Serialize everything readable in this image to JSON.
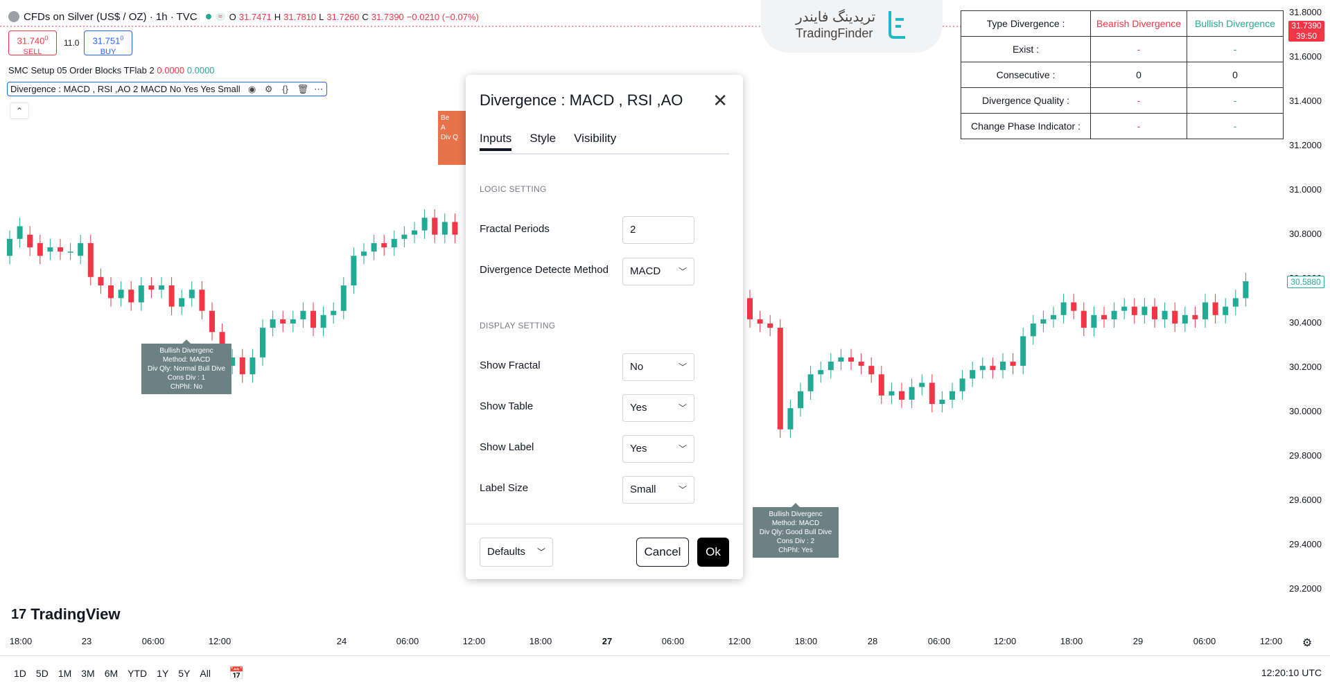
{
  "header": {
    "symbol": "CFDs on Silver (US$ / OZ) · 1h · TVC",
    "live_badge": "≈",
    "ohlc": {
      "o_label": "O",
      "o": "31.7471",
      "h_label": "H",
      "h": "31.7810",
      "l_label": "L",
      "l": "31.7260",
      "c_label": "C",
      "c": "31.7390",
      "change": "−0.0210 (−0.07%)"
    }
  },
  "trade": {
    "sell_price": "31.740",
    "sell_sup": "0",
    "sell_label": "SELL",
    "spread": "11.0",
    "buy_price": "31.751",
    "buy_sup": "0",
    "buy_label": "BUY"
  },
  "indicators": {
    "line1_name": "SMC Setup 05 Order Blocks TFlab 2",
    "line1_v1": "0.0000",
    "line1_v2": "0.0000",
    "line2_name": "Divergence : MACD , RSI ,AO 2 MACD No Yes Yes Small"
  },
  "watermark": {
    "fa": "تریدینگ فایندر",
    "en": "TradingFinder"
  },
  "div_table": {
    "headers": [
      "Type Divergence :",
      "Bearish Divergence",
      "Bullish Divergence"
    ],
    "rows": [
      {
        "label": "Exist :",
        "bear": "-",
        "bull": "-"
      },
      {
        "label": "Consecutive :",
        "bear": "0",
        "bull": "0"
      },
      {
        "label": "Divergence Quality :",
        "bear": "-",
        "bull": "-"
      },
      {
        "label": "Change Phase Indicator :",
        "bear": "-",
        "bull": "-"
      }
    ]
  },
  "price_scale": {
    "labels": [
      "31.8000",
      "31.6000",
      "31.4000",
      "31.2000",
      "31.0000",
      "30.8000",
      "30.6000",
      "30.4000",
      "30.2000",
      "30.0000",
      "29.8000",
      "29.6000",
      "29.4000",
      "29.2000"
    ],
    "current_price": "31.7390",
    "current_time": "39:50",
    "marker_price": "30.5880"
  },
  "time_axis": [
    "18:00",
    "23",
    "06:00",
    "12:00",
    "24",
    "06:00",
    "12:00",
    "18:00",
    "27",
    "06:00",
    "12:00",
    "18:00",
    "28",
    "06:00",
    "12:00",
    "18:00",
    "29",
    "06:00",
    "12:00"
  ],
  "periods": [
    "1D",
    "5D",
    "1M",
    "3M",
    "6M",
    "YTD",
    "1Y",
    "5Y",
    "All"
  ],
  "utc_time": "12:20:10 UTC",
  "brand": "TradingView",
  "labels": {
    "bull1": [
      "Bullish Divergenc",
      "Method: MACD",
      "Div Qly: Normal Bull Dive",
      "Cons Div : 1",
      "ChPhI: No"
    ],
    "bull2": [
      "Bullish Divergenc",
      "Method: MACD",
      "Div Qly: Good Bull Dive",
      "Cons Div : 2",
      "ChPhI: Yes"
    ],
    "orange": [
      "Be",
      "A",
      "Div Q"
    ]
  },
  "dialog": {
    "title": "Divergence : MACD , RSI ,AO",
    "tabs": [
      "Inputs",
      "Style",
      "Visibility"
    ],
    "logic_header": "LOGIC SETTING",
    "display_header": "DISPLAY SETTING",
    "fields": {
      "fractal_periods": {
        "label": "Fractal Periods",
        "value": "2"
      },
      "method": {
        "label": "Divergence Detecte Method",
        "value": "MACD"
      },
      "show_fractal": {
        "label": "Show Fractal",
        "value": "No"
      },
      "show_table": {
        "label": "Show Table",
        "value": "Yes"
      },
      "show_label": {
        "label": "Show Label",
        "value": "Yes"
      },
      "label_size": {
        "label": "Label Size",
        "value": "Small"
      }
    },
    "defaults_label": "Defaults",
    "cancel_label": "Cancel",
    "ok_label": "Ok"
  },
  "colors": {
    "bull": "#22ab94",
    "bear": "#f23645",
    "label_bg": "#6b8184"
  },
  "chart_data": {
    "type": "candlestick",
    "price_range": [
      29.1,
      31.85
    ],
    "candles_left": [
      [
        30.7,
        30.78
      ],
      [
        30.78,
        30.84
      ],
      [
        30.8,
        30.74
      ],
      [
        30.76,
        30.7
      ],
      [
        30.72,
        30.74
      ],
      [
        30.74,
        30.72
      ],
      [
        30.72,
        30.72
      ],
      [
        30.7,
        30.76
      ],
      [
        30.76,
        30.6
      ],
      [
        30.6,
        30.56
      ],
      [
        30.56,
        30.5
      ],
      [
        30.5,
        30.54
      ],
      [
        30.54,
        30.48
      ],
      [
        30.48,
        30.56
      ],
      [
        30.56,
        30.54
      ],
      [
        30.54,
        30.56
      ],
      [
        30.56,
        30.46
      ],
      [
        30.46,
        30.5
      ],
      [
        30.5,
        30.54
      ],
      [
        30.54,
        30.44
      ],
      [
        30.44,
        30.34
      ],
      [
        30.34,
        30.18
      ],
      [
        30.18,
        30.22
      ],
      [
        30.22,
        30.14
      ],
      [
        30.14,
        30.22
      ],
      [
        30.22,
        30.36
      ],
      [
        30.36,
        30.4
      ],
      [
        30.4,
        30.38
      ],
      [
        30.38,
        30.4
      ],
      [
        30.4,
        30.44
      ],
      [
        30.44,
        30.36
      ],
      [
        30.36,
        30.42
      ],
      [
        30.42,
        30.44
      ],
      [
        30.44,
        30.56
      ],
      [
        30.56,
        30.7
      ],
      [
        30.7,
        30.72
      ],
      [
        30.72,
        30.76
      ],
      [
        30.76,
        30.74
      ],
      [
        30.74,
        30.78
      ],
      [
        30.78,
        30.8
      ],
      [
        30.8,
        30.82
      ],
      [
        30.82,
        30.88
      ],
      [
        30.88,
        30.8
      ],
      [
        30.8,
        30.86
      ],
      [
        30.86,
        30.8
      ]
    ],
    "candles_right": [
      [
        30.5,
        30.4
      ],
      [
        30.4,
        30.38
      ],
      [
        30.38,
        30.36
      ],
      [
        30.36,
        29.88
      ],
      [
        29.88,
        29.98
      ],
      [
        29.98,
        30.06
      ],
      [
        30.06,
        30.14
      ],
      [
        30.14,
        30.16
      ],
      [
        30.16,
        30.2
      ],
      [
        30.2,
        30.22
      ],
      [
        30.22,
        30.2
      ],
      [
        30.2,
        30.18
      ],
      [
        30.18,
        30.14
      ],
      [
        30.14,
        30.04
      ],
      [
        30.04,
        30.06
      ],
      [
        30.06,
        30.02
      ],
      [
        30.02,
        30.08
      ],
      [
        30.08,
        30.1
      ],
      [
        30.1,
        30.0
      ],
      [
        30.0,
        30.02
      ],
      [
        30.02,
        30.06
      ],
      [
        30.06,
        30.12
      ],
      [
        30.12,
        30.16
      ],
      [
        30.16,
        30.18
      ],
      [
        30.18,
        30.16
      ],
      [
        30.16,
        30.2
      ],
      [
        30.2,
        30.18
      ],
      [
        30.18,
        30.32
      ],
      [
        30.32,
        30.38
      ],
      [
        30.38,
        30.4
      ],
      [
        30.4,
        30.42
      ],
      [
        30.42,
        30.48
      ],
      [
        30.48,
        30.44
      ],
      [
        30.44,
        30.36
      ],
      [
        30.36,
        30.42
      ],
      [
        30.42,
        30.4
      ],
      [
        30.4,
        30.44
      ],
      [
        30.44,
        30.46
      ],
      [
        30.46,
        30.42
      ],
      [
        30.42,
        30.46
      ],
      [
        30.46,
        30.4
      ],
      [
        30.4,
        30.44
      ],
      [
        30.44,
        30.38
      ],
      [
        30.38,
        30.42
      ],
      [
        30.42,
        30.4
      ],
      [
        30.4,
        30.48
      ],
      [
        30.48,
        30.42
      ],
      [
        30.42,
        30.46
      ],
      [
        30.46,
        30.5
      ],
      [
        30.5,
        30.58
      ]
    ]
  }
}
